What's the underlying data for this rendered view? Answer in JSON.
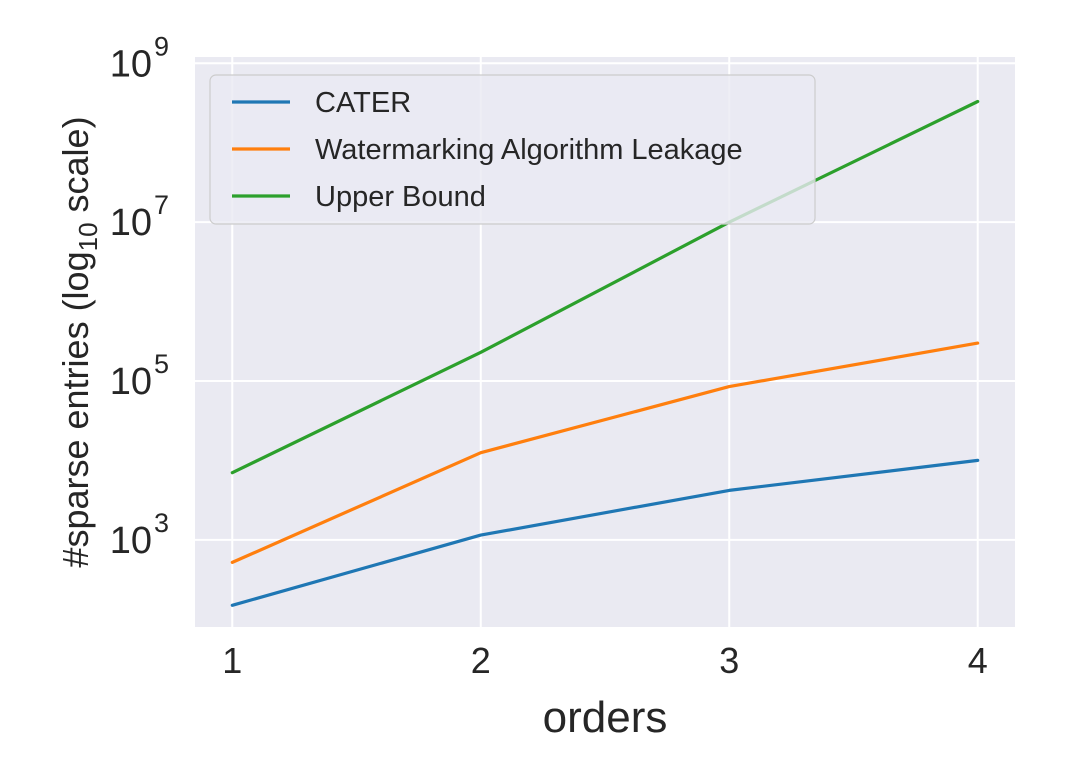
{
  "chart_data": {
    "type": "line",
    "title": "",
    "xlabel": "orders",
    "ylabel_prefix": "#sparse entries (log",
    "ylabel_subscript": "10",
    "ylabel_suffix": " scale)",
    "y_scale": "log",
    "x": [
      1,
      2,
      3,
      4
    ],
    "x_tick_labels": [
      "1",
      "2",
      "3",
      "4"
    ],
    "y_ticks": [
      1000,
      100000,
      10000000,
      1000000000
    ],
    "y_tick_base": "10",
    "y_tick_exponents": [
      "3",
      "5",
      "7",
      "9"
    ],
    "xlim": [
      0.85,
      4.15
    ],
    "ylim": [
      80,
      1200000000
    ],
    "grid": true,
    "legend_position": "upper-left",
    "series": [
      {
        "name": "CATER",
        "color": "#1f77b4",
        "values": [
          150,
          1150,
          4200,
          10000
        ]
      },
      {
        "name": "Watermarking Algorithm Leakage",
        "color": "#ff7f0e",
        "values": [
          520,
          12500,
          85000,
          300000
        ]
      },
      {
        "name": "Upper Bound",
        "color": "#2ca02c",
        "values": [
          7000,
          230000,
          10000000,
          330000000
        ]
      }
    ],
    "colors": {
      "plot_background": "#eaeaf2",
      "grid": "#ffffff",
      "text": "#262626"
    }
  }
}
